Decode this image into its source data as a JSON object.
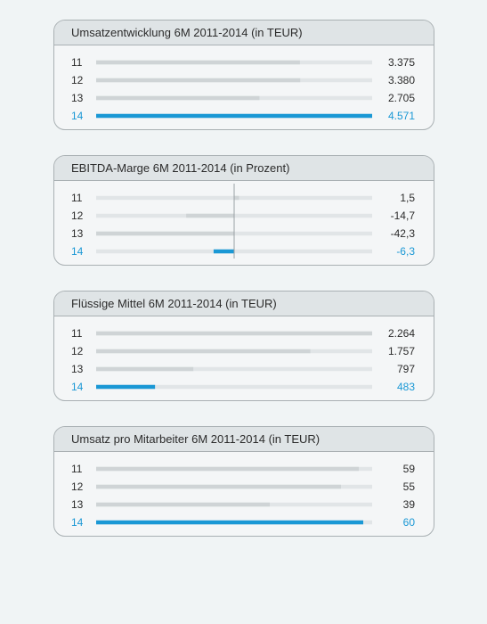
{
  "colors": {
    "track": "#e1e5e7",
    "bar": "#cfd4d6",
    "highlight": "#1a98d5",
    "text": "#2b2b2b",
    "axis": "#9aa1a4"
  },
  "chart_data": [
    {
      "type": "bar",
      "orientation": "horizontal",
      "title": "Umsatzentwicklung 6M 2011-2014 (in TEUR)",
      "categories": [
        "11",
        "12",
        "13",
        "14"
      ],
      "values": [
        3375,
        3380,
        2705,
        4571
      ],
      "value_labels": [
        "3.375",
        "3.380",
        "2.705",
        "4.571"
      ],
      "highlight_index": 3,
      "xlim": [
        0,
        4571
      ]
    },
    {
      "type": "bar",
      "orientation": "horizontal",
      "title": "EBITDA-Marge 6M 2011-2014 (in Prozent)",
      "categories": [
        "11",
        "12",
        "13",
        "14"
      ],
      "values": [
        1.5,
        -14.7,
        -42.3,
        -6.3
      ],
      "value_labels": [
        "1,5",
        "-14,7",
        "-42,3",
        "-6,3"
      ],
      "highlight_index": 3,
      "xlim": [
        -42.3,
        42.3
      ]
    },
    {
      "type": "bar",
      "orientation": "horizontal",
      "title": "Flüssige Mittel 6M 2011-2014 (in TEUR)",
      "categories": [
        "11",
        "12",
        "13",
        "14"
      ],
      "values": [
        2264,
        1757,
        797,
        483
      ],
      "value_labels": [
        "2.264",
        "1.757",
        "797",
        "483"
      ],
      "highlight_index": 3,
      "xlim": [
        0,
        2264
      ]
    },
    {
      "type": "bar",
      "orientation": "horizontal",
      "title": "Umsatz pro Mitarbeiter 6M 2011-2014 (in TEUR)",
      "categories": [
        "11",
        "12",
        "13",
        "14"
      ],
      "values": [
        59,
        55,
        39,
        60
      ],
      "value_labels": [
        "59",
        "55",
        "39",
        "60"
      ],
      "highlight_index": 3,
      "xlim": [
        0,
        62
      ]
    }
  ]
}
